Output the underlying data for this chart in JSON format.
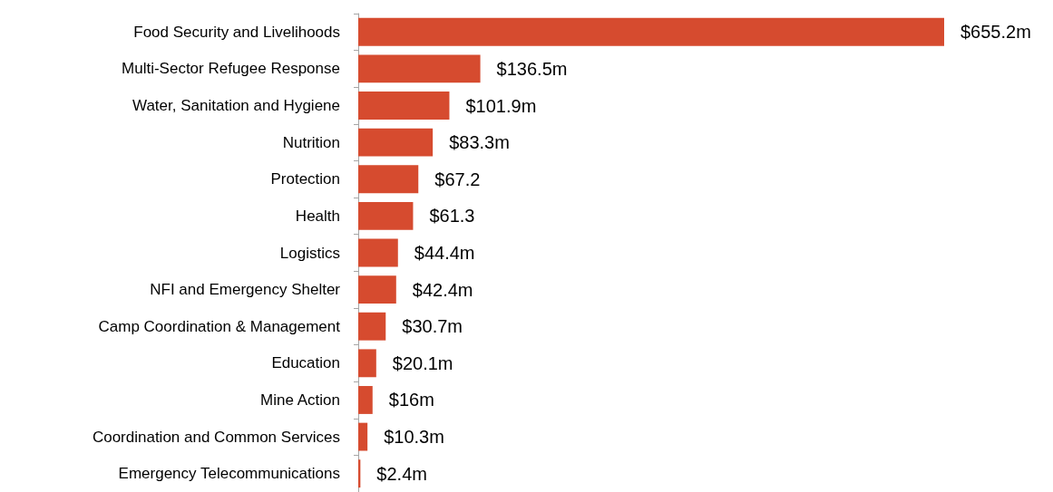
{
  "chart_data": {
    "type": "bar",
    "orientation": "horizontal",
    "categories": [
      "Food Security and Livelihoods",
      "Multi-Sector Refugee Response",
      "Water, Sanitation and Hygiene",
      "Nutrition",
      "Protection",
      "Health",
      "Logistics",
      "NFI and Emergency Shelter",
      "Camp Coordination & Management",
      "Education",
      "Mine Action",
      "Coordination and Common Services",
      "Emergency Telecommunications"
    ],
    "values": [
      655.2,
      136.5,
      101.9,
      83.3,
      67.2,
      61.3,
      44.4,
      42.4,
      30.7,
      20.1,
      16,
      10.3,
      2.4
    ],
    "value_labels": [
      "$655.2m",
      "$136.5m",
      "$101.9m",
      "$83.3m",
      "$67.2",
      "$61.3",
      "$44.4m",
      "$42.4m",
      "$30.7m",
      "$20.1m",
      "$16m",
      "$10.3m",
      "$2.4m"
    ],
    "color": "#d64b2f"
  }
}
